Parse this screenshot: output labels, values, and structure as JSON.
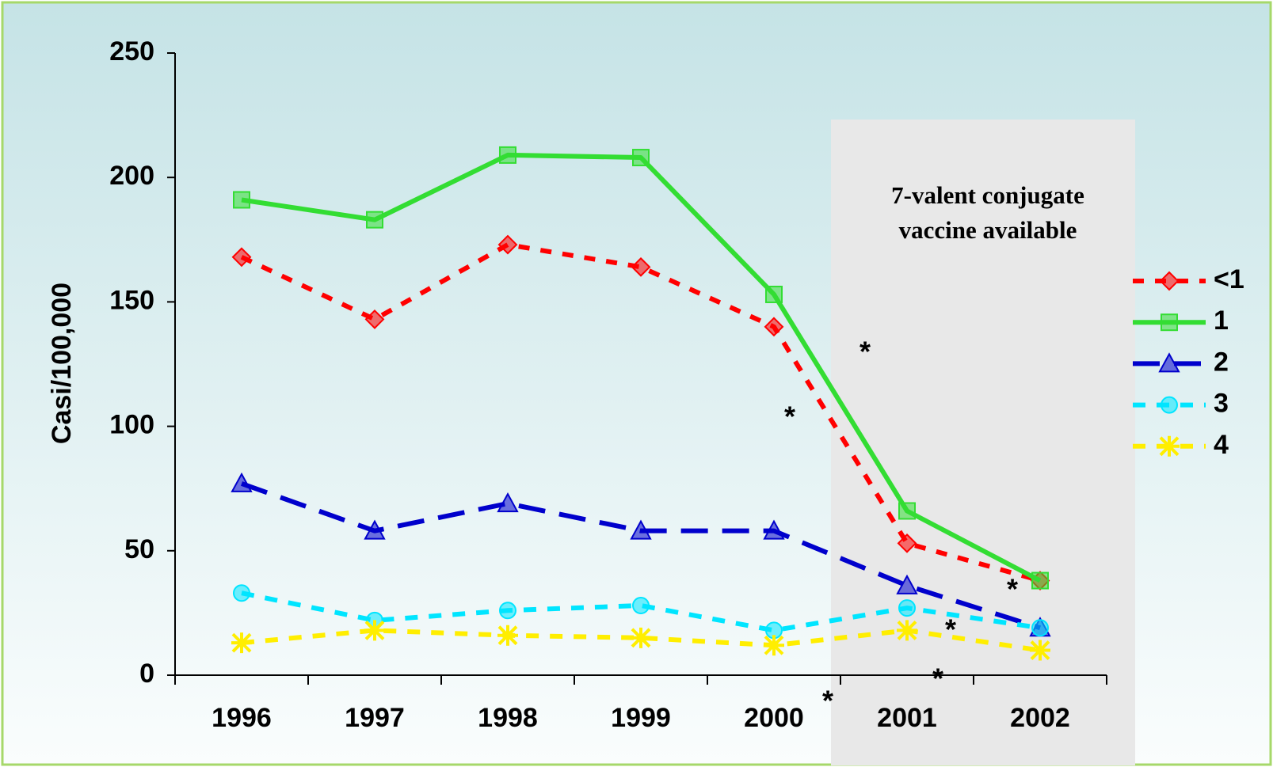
{
  "chart_data": {
    "type": "line",
    "y_label": "Casi/100,000",
    "annotation": [
      "7-valent conjugate",
      "vaccine available"
    ],
    "asterisks": [
      "*",
      "*",
      "*",
      "*",
      "*",
      "*"
    ],
    "categories": [
      "1996",
      "1997",
      "1998",
      "1999",
      "2000",
      "2001",
      "2002"
    ],
    "ylim": [
      0,
      250
    ],
    "yticks": [
      0,
      50,
      100,
      150,
      200,
      250
    ],
    "grid": false,
    "legend": "right",
    "series": [
      {
        "name": "<1",
        "color": "#ff0000",
        "values": [
          168,
          143,
          173,
          164,
          140,
          53,
          38
        ]
      },
      {
        "name": "1",
        "color": "#33dd33",
        "values": [
          191,
          183,
          209,
          208,
          153,
          66,
          38
        ]
      },
      {
        "name": "2",
        "color": "#0000cc",
        "values": [
          77,
          58,
          69,
          58,
          58,
          36,
          19
        ]
      },
      {
        "name": "3",
        "color": "#00e5ff",
        "values": [
          33,
          22,
          26,
          28,
          18,
          27,
          19
        ]
      },
      {
        "name": "4",
        "color": "#ffee00",
        "values": [
          13,
          18,
          16,
          15,
          12,
          18,
          10
        ]
      }
    ]
  }
}
